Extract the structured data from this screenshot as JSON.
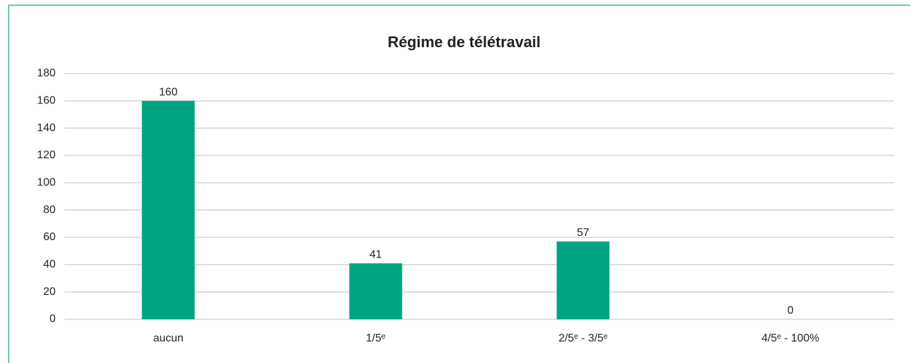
{
  "chart_data": {
    "type": "bar",
    "title": "Régime de télétravail",
    "categories": [
      "aucun",
      "1/5ᵉ",
      "2/5ᵉ - 3/5ᵉ",
      "4/5ᵉ - 100%"
    ],
    "values": [
      160,
      41,
      57,
      0
    ],
    "color": "#00a481",
    "ylim": [
      0,
      180
    ],
    "yticks": [
      0,
      20,
      40,
      60,
      80,
      100,
      120,
      140,
      160,
      180
    ],
    "grid": true
  }
}
